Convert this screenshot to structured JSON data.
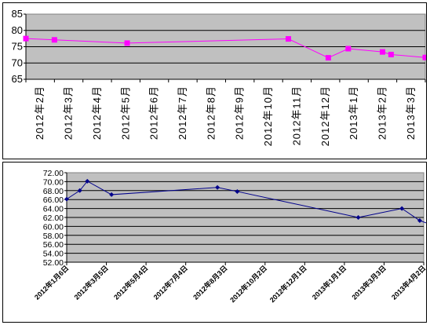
{
  "chart_data": [
    {
      "type": "line",
      "categories": [
        "2012年2月",
        "2012年3月",
        "2012年4月",
        "2012年5月",
        "2012年6月",
        "2012年7月",
        "2012年8月",
        "2012年9月",
        "2012年10月",
        "2012年11月",
        "2012年12月",
        "2013年1月",
        "2013年2月",
        "2013年3月"
      ],
      "ylim": [
        65,
        85
      ],
      "ytick_step": 5,
      "yticks": [
        "65",
        "70",
        "75",
        "80",
        "85"
      ],
      "grid": true,
      "plot_background": "#c0c0c0",
      "series_color": "#ff00ff",
      "marker": "square",
      "points": [
        {
          "x": 0.0,
          "y": 77.5
        },
        {
          "x": 1.0,
          "y": 77.1
        },
        {
          "x": 3.55,
          "y": 76.1
        },
        {
          "x": 9.2,
          "y": 77.4
        },
        {
          "x": 10.6,
          "y": 71.6
        },
        {
          "x": 11.3,
          "y": 74.4
        },
        {
          "x": 12.5,
          "y": 73.4
        },
        {
          "x": 12.8,
          "y": 72.6
        },
        {
          "x": 14.0,
          "y": 71.7
        }
      ]
    },
    {
      "type": "line",
      "categories": [
        "2012年1月6日",
        "2012年3月5日",
        "2012年5月4日",
        "2012年7月4日",
        "2012年8月3日",
        "2012年10月2日",
        "2012年12月1日",
        "2013年1月1日",
        "2013年3月3日",
        "2013年4月2日"
      ],
      "ylim": [
        52,
        72
      ],
      "ytick_step": 2,
      "yticks": [
        "52.00",
        "54.00",
        "56.00",
        "58.00",
        "60.00",
        "62.00",
        "64.00",
        "66.00",
        "68.00",
        "70.00",
        "72.00"
      ],
      "grid": true,
      "plot_background": "#c0c0c0",
      "series_color": "#00008b",
      "marker": "diamond",
      "points": [
        {
          "x": 0.0,
          "y": 66.1
        },
        {
          "x": 0.33,
          "y": 68.0
        },
        {
          "x": 0.52,
          "y": 70.1
        },
        {
          "x": 1.13,
          "y": 67.1
        },
        {
          "x": 3.8,
          "y": 68.7
        },
        {
          "x": 4.3,
          "y": 67.8
        },
        {
          "x": 7.35,
          "y": 62.0
        },
        {
          "x": 8.45,
          "y": 64.0
        },
        {
          "x": 8.9,
          "y": 61.3
        },
        {
          "x": 9.6,
          "y": 59.1
        },
        {
          "x": 10.0,
          "y": 60.1
        }
      ]
    }
  ]
}
